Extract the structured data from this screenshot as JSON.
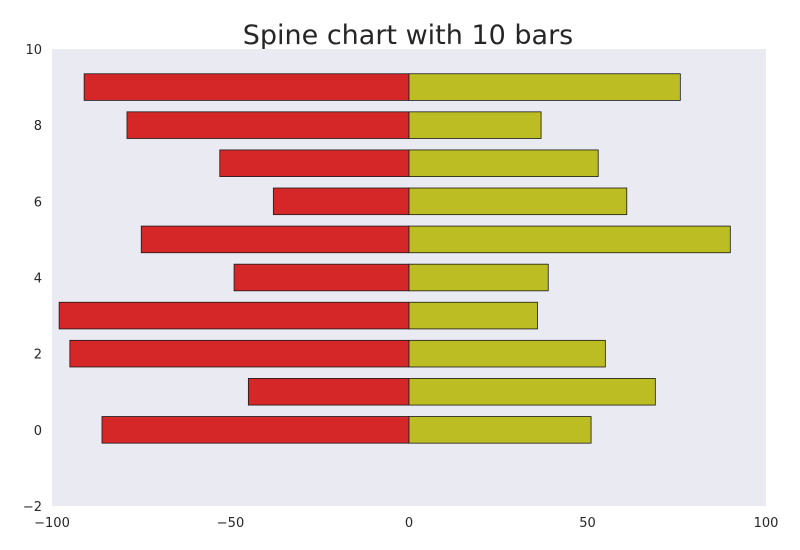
{
  "chart_data": {
    "type": "bar",
    "orientation": "horizontal",
    "title": "Spine chart with 10 bars",
    "xlabel": "",
    "ylabel": "",
    "xlim": [
      -100,
      100
    ],
    "ylim": [
      -2,
      10
    ],
    "xticks": [
      "−100",
      "−50",
      "0",
      "50",
      "100"
    ],
    "yticks": [
      "−2",
      "0",
      "2",
      "4",
      "6",
      "8",
      "10"
    ],
    "grid": false,
    "categories": [
      0,
      1,
      2,
      3,
      4,
      5,
      6,
      7,
      8,
      9
    ],
    "series": [
      {
        "color": "#d62728",
        "values": [
          -86,
          -45,
          -95,
          -98,
          -49,
          -75,
          -38,
          -53,
          -79,
          -91
        ]
      },
      {
        "color": "#bcbd22",
        "values": [
          51,
          69,
          55,
          36,
          39,
          90,
          61,
          53,
          37,
          76
        ]
      }
    ]
  }
}
